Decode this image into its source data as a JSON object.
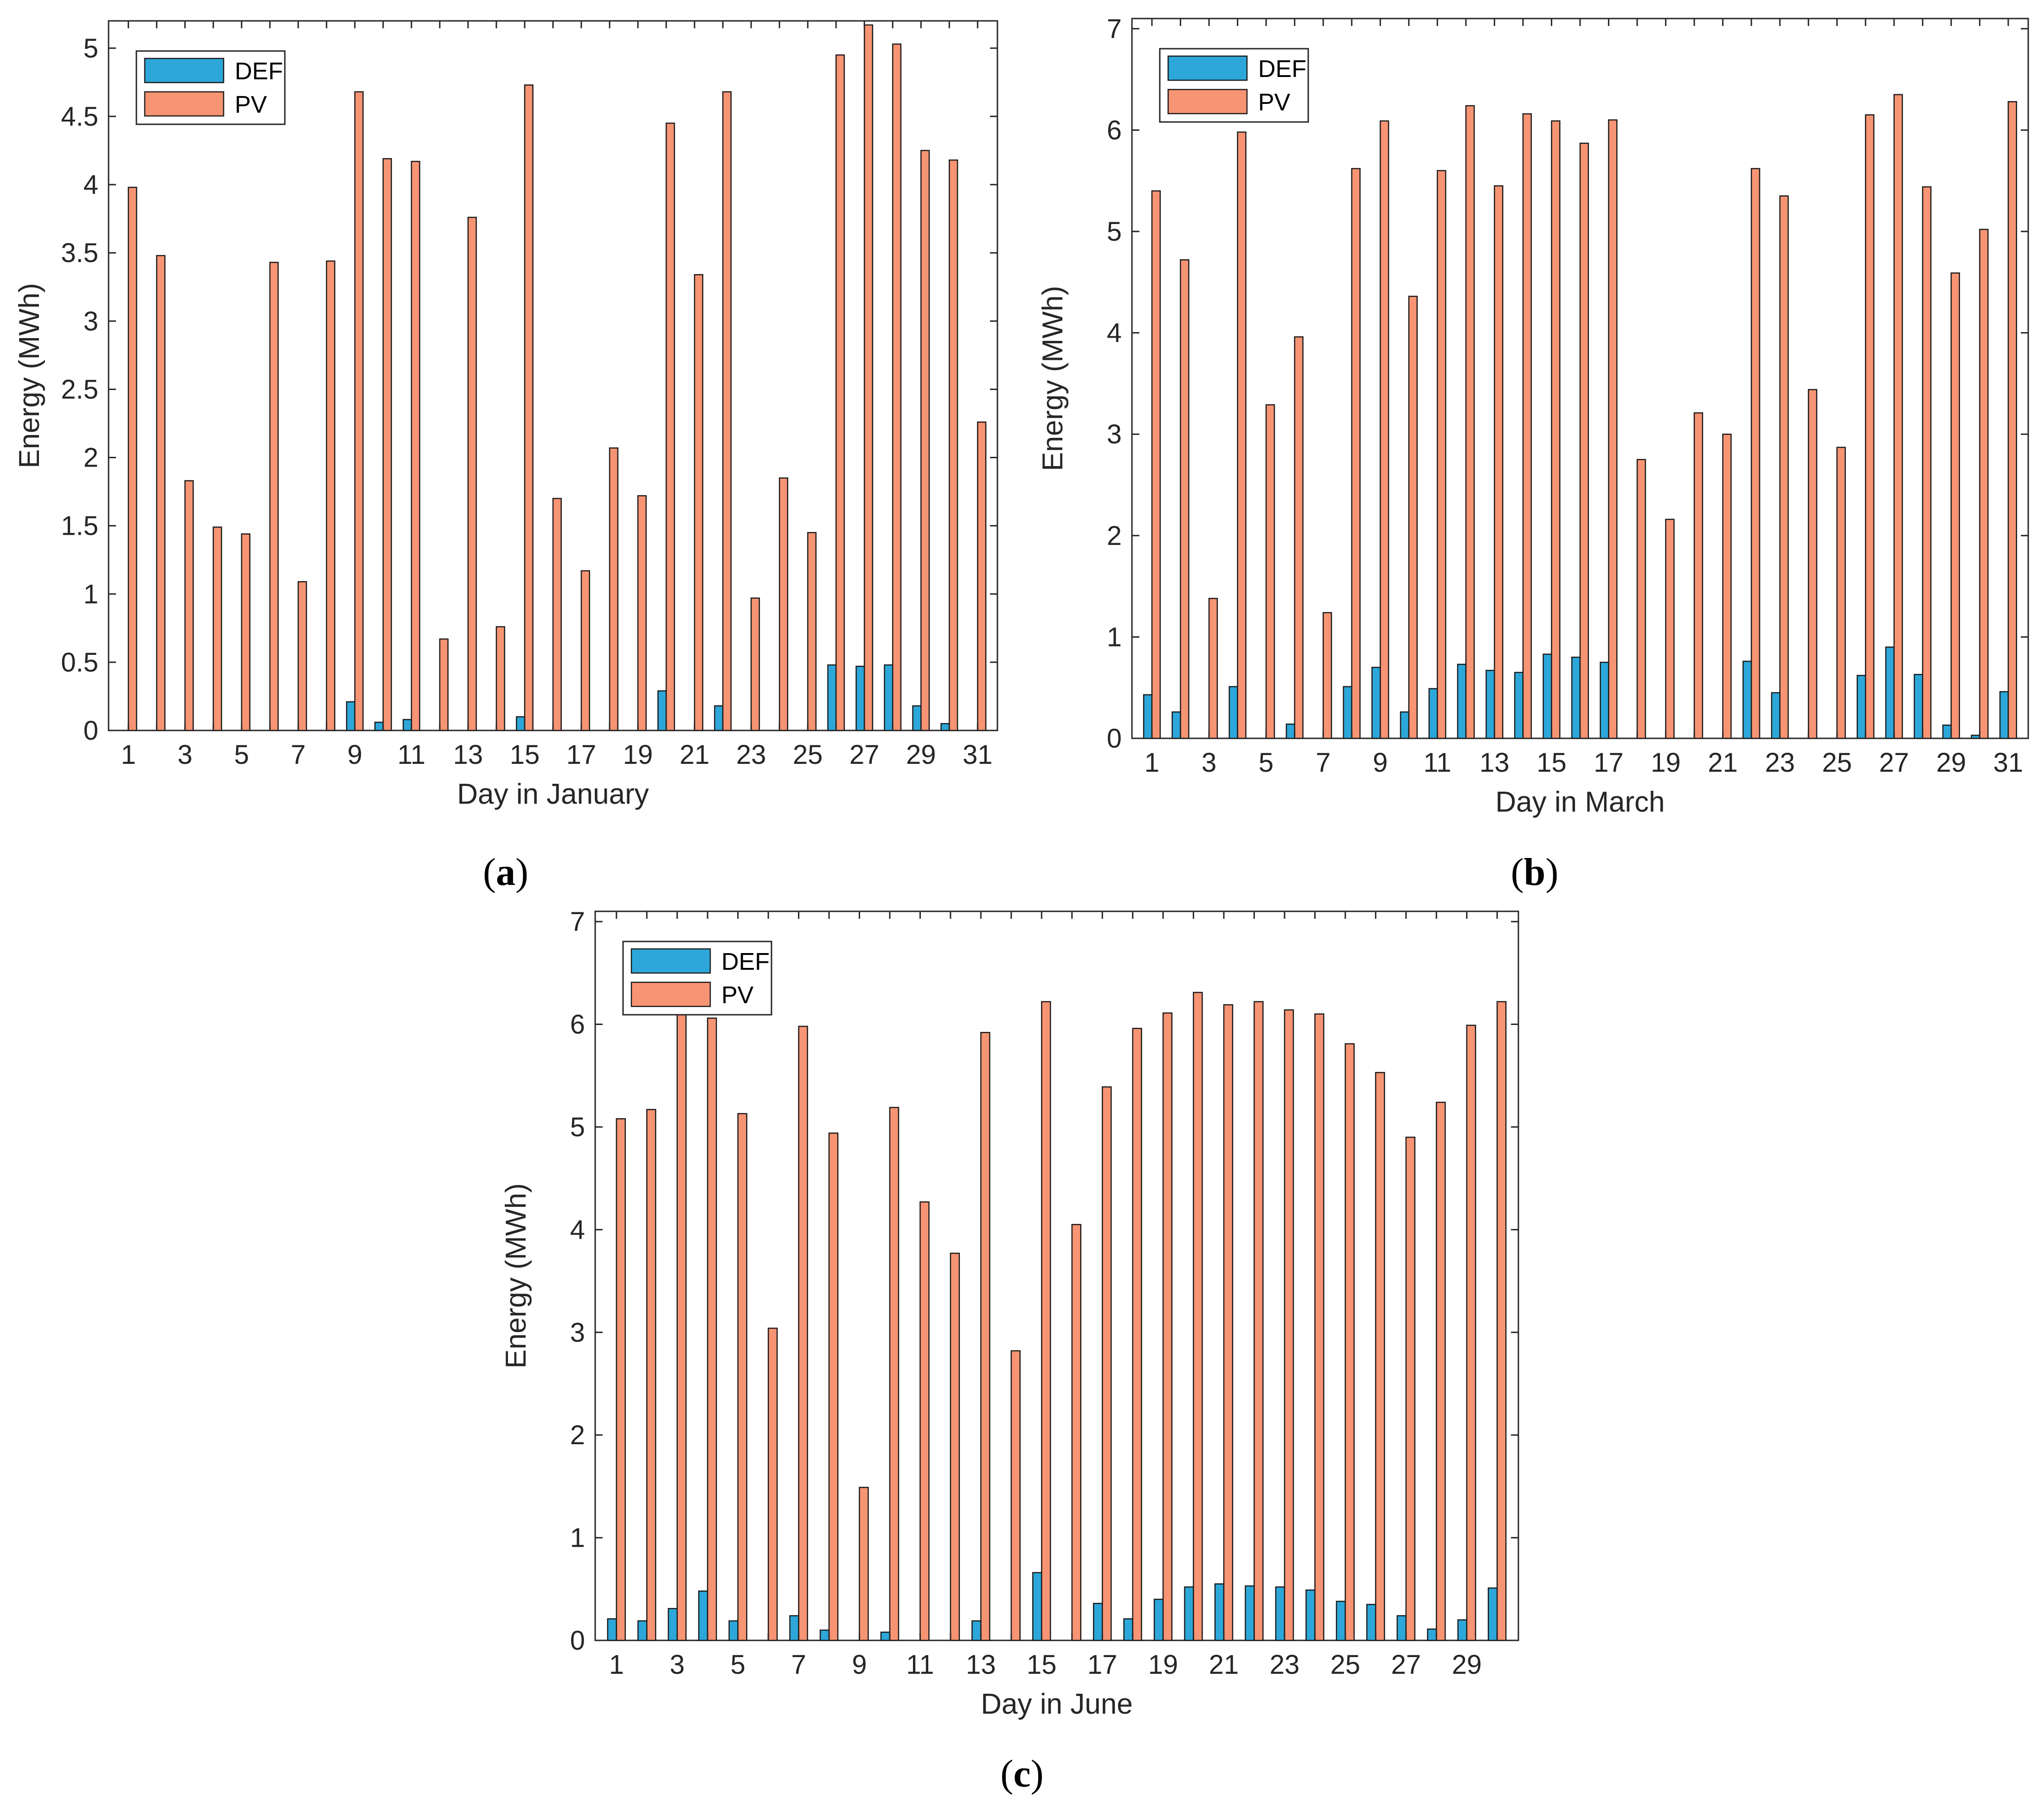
{
  "figure": {
    "panel_labels": [
      {
        "open": "(",
        "letter": "a",
        "close": ")"
      },
      {
        "open": "(",
        "letter": "b",
        "close": ")"
      },
      {
        "open": "(",
        "letter": "c",
        "close": ")"
      }
    ]
  },
  "colors": {
    "def": "#2DA7D9",
    "pv": "#F79473",
    "bar_edge": "#1a1a1a",
    "axis": "#262626"
  },
  "chart_data": [
    {
      "type": "bar",
      "panel": "a",
      "title": "",
      "xlabel": "Day in January",
      "ylabel": "Energy (MWh)",
      "ylim": [
        0,
        5.2
      ],
      "yticks": [
        0,
        0.5,
        1,
        1.5,
        2,
        2.5,
        3,
        3.5,
        4,
        4.5,
        5
      ],
      "ytick_labels": [
        "0",
        "0.5",
        "1",
        "1.5",
        "2",
        "2.5",
        "3",
        "3.5",
        "4",
        "4.5",
        "5"
      ],
      "xticks": [
        1,
        3,
        5,
        7,
        9,
        11,
        13,
        15,
        17,
        19,
        21,
        23,
        25,
        27,
        29,
        31
      ],
      "xlim": [
        0.3,
        31.7
      ],
      "legend_position": "top-left",
      "categories": [
        1,
        2,
        3,
        4,
        5,
        6,
        7,
        8,
        9,
        10,
        11,
        12,
        13,
        14,
        15,
        16,
        17,
        18,
        19,
        20,
        21,
        22,
        23,
        24,
        25,
        26,
        27,
        28,
        29,
        30,
        31
      ],
      "series": [
        {
          "name": "DEF",
          "values": [
            0,
            0,
            0,
            0,
            0,
            0,
            0,
            0,
            0.21,
            0.06,
            0.08,
            0,
            0,
            0,
            0.1,
            0,
            0,
            0,
            0,
            0.29,
            0,
            0.18,
            0,
            0,
            0,
            0.48,
            0.47,
            0.48,
            0.18,
            0.05,
            0
          ]
        },
        {
          "name": "PV",
          "values": [
            3.98,
            3.48,
            1.83,
            1.49,
            1.44,
            3.43,
            1.09,
            3.44,
            4.68,
            4.19,
            4.17,
            0.67,
            3.76,
            0.76,
            4.73,
            1.7,
            1.17,
            2.07,
            1.72,
            4.45,
            3.34,
            4.68,
            0.97,
            1.85,
            1.45,
            4.95,
            5.17,
            5.03,
            4.25,
            4.18,
            2.26
          ]
        }
      ]
    },
    {
      "type": "bar",
      "panel": "b",
      "title": "",
      "xlabel": "Day in March",
      "ylabel": "Energy (MWh)",
      "ylim": [
        0,
        7.1
      ],
      "yticks": [
        0,
        1,
        2,
        3,
        4,
        5,
        6,
        7
      ],
      "ytick_labels": [
        "0",
        "1",
        "2",
        "3",
        "4",
        "5",
        "6",
        "7"
      ],
      "xticks": [
        1,
        3,
        5,
        7,
        9,
        11,
        13,
        15,
        17,
        19,
        21,
        23,
        25,
        27,
        29,
        31
      ],
      "xlim": [
        0.3,
        31.7
      ],
      "legend_position": "top-left",
      "categories": [
        1,
        2,
        3,
        4,
        5,
        6,
        7,
        8,
        9,
        10,
        11,
        12,
        13,
        14,
        15,
        16,
        17,
        18,
        19,
        20,
        21,
        22,
        23,
        24,
        25,
        26,
        27,
        28,
        29,
        30,
        31
      ],
      "series": [
        {
          "name": "DEF",
          "values": [
            0.43,
            0.26,
            0,
            0.51,
            0,
            0.14,
            0,
            0.51,
            0.7,
            0.26,
            0.49,
            0.73,
            0.67,
            0.65,
            0.83,
            0.8,
            0.75,
            0,
            0,
            0,
            0,
            0.76,
            0.45,
            0,
            0,
            0.62,
            0.9,
            0.63,
            0.13,
            0.03,
            0.46
          ]
        },
        {
          "name": "PV",
          "values": [
            5.4,
            4.72,
            1.38,
            5.98,
            3.29,
            3.96,
            1.24,
            5.62,
            6.09,
            4.36,
            5.6,
            6.24,
            5.45,
            6.16,
            6.09,
            5.87,
            6.1,
            2.75,
            2.16,
            3.21,
            3.0,
            5.62,
            5.35,
            3.44,
            2.87,
            6.15,
            6.35,
            5.44,
            4.59,
            5.02,
            6.28
          ]
        }
      ]
    },
    {
      "type": "bar",
      "panel": "c",
      "title": "",
      "xlabel": "Day in June",
      "ylabel": "Energy (MWh)",
      "ylim": [
        0,
        7.1
      ],
      "yticks": [
        0,
        1,
        2,
        3,
        4,
        5,
        6,
        7
      ],
      "ytick_labels": [
        "0",
        "1",
        "2",
        "3",
        "4",
        "5",
        "6",
        "7"
      ],
      "xticks": [
        1,
        3,
        5,
        7,
        9,
        11,
        13,
        15,
        17,
        19,
        21,
        23,
        25,
        27,
        29
      ],
      "xlim": [
        0.3,
        30.7
      ],
      "legend_position": "top-left",
      "categories": [
        1,
        2,
        3,
        4,
        5,
        6,
        7,
        8,
        9,
        10,
        11,
        12,
        13,
        14,
        15,
        16,
        17,
        18,
        19,
        20,
        21,
        22,
        23,
        24,
        25,
        26,
        27,
        28,
        29,
        30
      ],
      "series": [
        {
          "name": "DEF",
          "values": [
            0.21,
            0.19,
            0.31,
            0.48,
            0.19,
            0,
            0.24,
            0.1,
            0,
            0.08,
            0,
            0,
            0.19,
            0,
            0.66,
            0,
            0.36,
            0.21,
            0.4,
            0.52,
            0.55,
            0.53,
            0.52,
            0.49,
            0.38,
            0.35,
            0.24,
            0.11,
            0.2,
            0.51
          ]
        },
        {
          "name": "PV",
          "values": [
            5.08,
            5.17,
            6.11,
            6.06,
            5.13,
            3.04,
            5.98,
            4.94,
            1.49,
            5.19,
            4.27,
            3.77,
            5.92,
            2.82,
            6.22,
            4.05,
            5.39,
            5.96,
            6.11,
            6.31,
            6.19,
            6.22,
            6.14,
            6.1,
            5.81,
            5.53,
            4.9,
            5.24,
            5.99,
            6.22
          ]
        }
      ]
    }
  ]
}
